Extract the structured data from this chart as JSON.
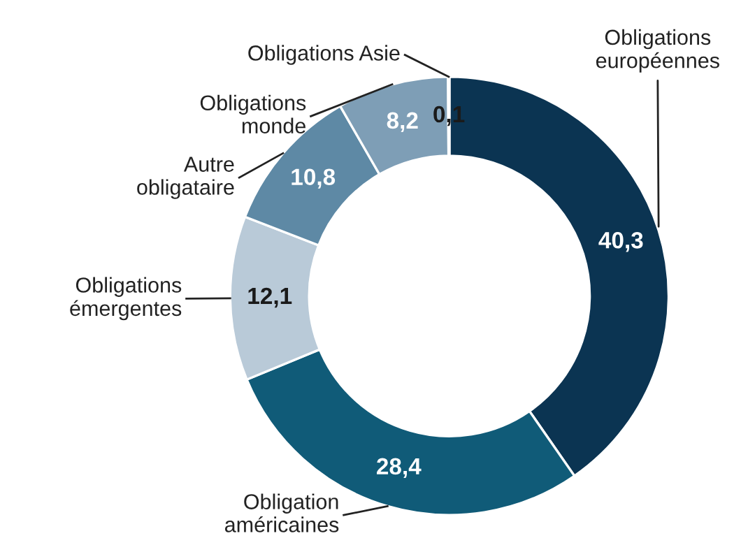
{
  "chart_data": {
    "type": "donut",
    "categories": [
      "Obligations\neuropéennes",
      "Obligation\naméricaines",
      "Obligations\némergentes",
      "Autre\nobligataire",
      "Obligations\nmonde",
      "Obligations Asie"
    ],
    "values": [
      40.3,
      28.4,
      12.1,
      10.8,
      8.2,
      0.1
    ],
    "value_labels": [
      "40,3",
      "28,4",
      "12,1",
      "10,8",
      "8,2",
      "0,1"
    ],
    "colors": [
      "#0b3452",
      "#105b78",
      "#b9cad8",
      "#5e89a5",
      "#7e9eb6",
      "#e6ecf1"
    ]
  }
}
